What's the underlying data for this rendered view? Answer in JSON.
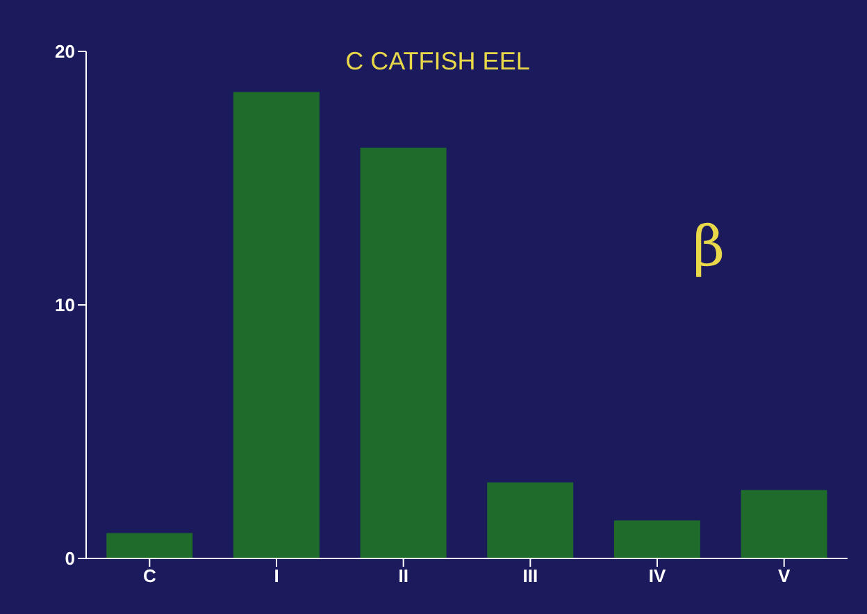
{
  "chart_data": {
    "type": "bar",
    "title": "C CATFISH EEL",
    "categories": [
      "C",
      "I",
      "II",
      "III",
      "IV",
      "V"
    ],
    "values": [
      1.0,
      18.4,
      16.2,
      3.0,
      1.5,
      2.7
    ],
    "color": "#1e6b2c",
    "ylim": [
      0,
      20
    ],
    "yticks": [
      0,
      10,
      20
    ],
    "annotations": [
      "β"
    ]
  }
}
